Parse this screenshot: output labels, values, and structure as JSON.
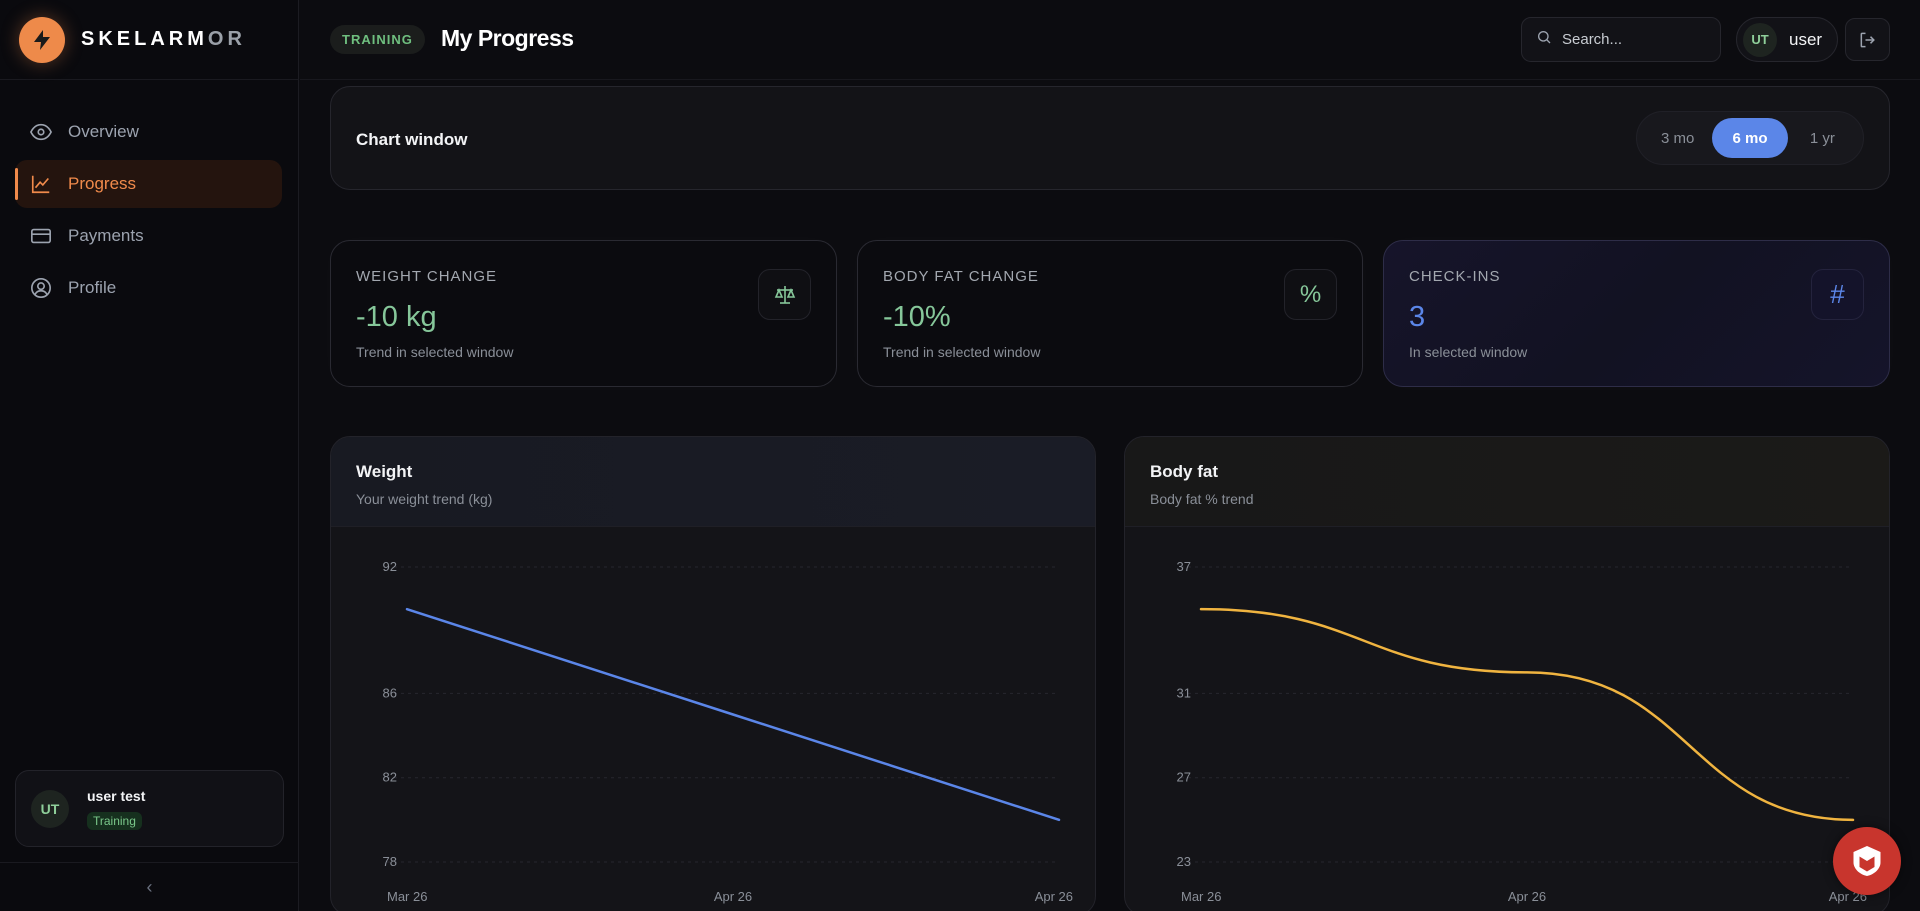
{
  "brand": {
    "name_main": "SKELARM",
    "name_dim": "OR"
  },
  "sidebar": {
    "items": [
      {
        "label": "Overview",
        "icon": "eye-icon"
      },
      {
        "label": "Progress",
        "icon": "trend-chart-icon",
        "active": true
      },
      {
        "label": "Payments",
        "icon": "credit-card-icon"
      },
      {
        "label": "Profile",
        "icon": "user-circle-icon"
      }
    ],
    "user": {
      "initials": "UT",
      "name": "user test",
      "badge": "Training"
    },
    "collapse_glyph": "‹"
  },
  "header": {
    "badge": "TRAINING",
    "title": "My Progress",
    "search_placeholder": "Search...",
    "user_initials": "UT",
    "user_name": "user"
  },
  "chart_window": {
    "label": "Chart window",
    "options": [
      "3 mo",
      "6 mo",
      "1 yr"
    ],
    "selected": "6 mo"
  },
  "stats": [
    {
      "label": "WEIGHT CHANGE",
      "value": "-10 kg",
      "sub": "Trend in selected window",
      "icon": "scale-icon",
      "icon_glyph": "⚖"
    },
    {
      "label": "BODY FAT CHANGE",
      "value": "-10%",
      "sub": "Trend in selected window",
      "icon": "percent-icon",
      "icon_glyph": "%"
    },
    {
      "label": "CHECK-INS",
      "value": "3",
      "sub": "In selected window",
      "icon": "hash-icon",
      "icon_glyph": "#"
    }
  ],
  "colors": {
    "accent": "#f08a4b",
    "blue": "#5b86e8",
    "green": "#86c79a",
    "amber": "#f0b440"
  },
  "chart_data": [
    {
      "type": "line",
      "title": "Weight",
      "subtitle": "Your weight trend (kg)",
      "yticks": [
        92,
        86,
        82,
        78
      ],
      "ylim": [
        78,
        92
      ],
      "xticks": [
        "Mar 26",
        "Apr 26",
        "Apr 26"
      ],
      "series": [
        {
          "color": "#5b86e8",
          "x": [
            0,
            1,
            2
          ],
          "values": [
            90,
            85,
            80
          ]
        }
      ],
      "grid": true
    },
    {
      "type": "line",
      "title": "Body fat",
      "subtitle": "Body fat % trend",
      "yticks": [
        37,
        31,
        27,
        23
      ],
      "ylim": [
        23,
        37
      ],
      "xticks": [
        "Mar 26",
        "Apr 26",
        "Apr 26"
      ],
      "series": [
        {
          "color": "#f0b440",
          "x": [
            0,
            1,
            2
          ],
          "values": [
            35,
            32,
            25
          ]
        }
      ],
      "grid": true
    }
  ]
}
